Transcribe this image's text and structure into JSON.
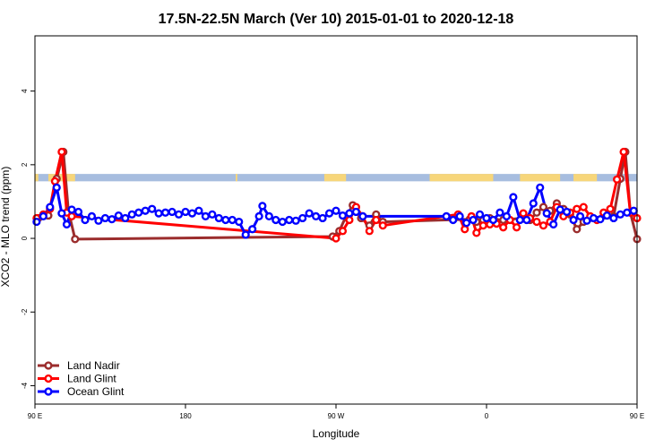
{
  "chart_data": {
    "type": "line",
    "title": "17.5N-22.5N March (Ver 10)   2015-01-01 to 2020-12-18",
    "xlabel": "Longitude",
    "ylabel": "XCO2 - MLO trend (ppm)",
    "xlim": [
      90,
      450
    ],
    "ylim": [
      -4.5,
      5.5
    ],
    "xticks": [
      {
        "value": 90,
        "label": "90 E"
      },
      {
        "value": 180,
        "label": "180"
      },
      {
        "value": 270,
        "label": "90 W"
      },
      {
        "value": 360,
        "label": "0"
      },
      {
        "value": 450,
        "label": "90 E"
      },
      {
        "value": 540,
        "label": "180"
      }
    ],
    "yticks": [
      {
        "value": -4,
        "label": "-4"
      },
      {
        "value": -2,
        "label": "-2"
      },
      {
        "value": 0,
        "label": "0"
      },
      {
        "value": 2,
        "label": "2"
      },
      {
        "value": 4,
        "label": "4"
      }
    ],
    "legend_placement": "bottom-left",
    "land_band": {
      "y_range": [
        1.55,
        1.75
      ],
      "ocean_color": "#a7bddf",
      "land_color": "#f7d67a",
      "land_spans": [
        [
          90,
          92
        ],
        [
          98,
          114
        ],
        [
          210,
          211
        ],
        [
          263,
          276
        ],
        [
          326,
          364
        ],
        [
          380,
          404
        ],
        [
          412,
          426
        ]
      ]
    },
    "series": [
      {
        "name": "Land Nadir",
        "color": "#9b2d2d",
        "points": [
          [
            92,
            0.55
          ],
          [
            98,
            0.62
          ],
          [
            103,
            1.62
          ],
          [
            107,
            2.35
          ],
          [
            110,
            0.75
          ],
          [
            114,
            -0.02
          ],
          [
            268,
            0.05
          ],
          [
            272,
            0.2
          ],
          [
            276,
            0.6
          ],
          [
            280,
            0.9
          ],
          [
            285,
            0.55
          ],
          [
            290,
            0.35
          ],
          [
            294,
            0.65
          ],
          [
            298,
            0.45
          ],
          [
            350,
            0.52
          ],
          [
            354,
            0.45
          ],
          [
            358,
            0.5
          ],
          [
            362,
            0.55
          ],
          [
            366,
            0.45
          ],
          [
            370,
            0.5
          ],
          [
            382,
            0.55
          ],
          [
            386,
            0.5
          ],
          [
            390,
            0.7
          ],
          [
            394,
            0.85
          ],
          [
            398,
            0.75
          ],
          [
            402,
            0.95
          ],
          [
            406,
            0.8
          ],
          [
            410,
            0.65
          ],
          [
            414,
            0.25
          ],
          [
            418,
            0.45
          ],
          [
            436,
            0.6
          ],
          [
            440,
            1.62
          ],
          [
            443,
            2.35
          ],
          [
            446,
            0.7
          ],
          [
            450,
            -0.02
          ]
        ]
      },
      {
        "name": "Land Glint",
        "color": "#ff0000",
        "points": [
          [
            91,
            0.55
          ],
          [
            95,
            0.65
          ],
          [
            99,
            0.8
          ],
          [
            102,
            1.55
          ],
          [
            106,
            2.35
          ],
          [
            109,
            0.7
          ],
          [
            112,
            0.6
          ],
          [
            270,
            0.0
          ],
          [
            274,
            0.2
          ],
          [
            278,
            0.5
          ],
          [
            282,
            0.85
          ],
          [
            286,
            0.6
          ],
          [
            290,
            0.2
          ],
          [
            294,
            0.5
          ],
          [
            298,
            0.35
          ],
          [
            343,
            0.65
          ],
          [
            347,
            0.25
          ],
          [
            351,
            0.6
          ],
          [
            354,
            0.15
          ],
          [
            358,
            0.35
          ],
          [
            362,
            0.38
          ],
          [
            366,
            0.4
          ],
          [
            370,
            0.3
          ],
          [
            374,
            0.5
          ],
          [
            378,
            0.3
          ],
          [
            382,
            0.68
          ],
          [
            386,
            0.55
          ],
          [
            390,
            0.45
          ],
          [
            394,
            0.35
          ],
          [
            398,
            0.45
          ],
          [
            402,
            0.85
          ],
          [
            406,
            0.6
          ],
          [
            410,
            0.7
          ],
          [
            414,
            0.8
          ],
          [
            418,
            0.85
          ],
          [
            422,
            0.6
          ],
          [
            426,
            0.5
          ],
          [
            430,
            0.7
          ],
          [
            434,
            0.8
          ],
          [
            438,
            1.6
          ],
          [
            442,
            2.35
          ],
          [
            446,
            0.7
          ],
          [
            450,
            0.55
          ]
        ]
      },
      {
        "name": "Ocean Glint",
        "color": "#0000ff",
        "points": [
          [
            91,
            0.45
          ],
          [
            95,
            0.6
          ],
          [
            99,
            0.85
          ],
          [
            103,
            1.38
          ],
          [
            106,
            0.68
          ],
          [
            109,
            0.38
          ],
          [
            112,
            0.78
          ],
          [
            116,
            0.72
          ],
          [
            120,
            0.5
          ],
          [
            124,
            0.6
          ],
          [
            128,
            0.48
          ],
          [
            132,
            0.55
          ],
          [
            136,
            0.52
          ],
          [
            140,
            0.62
          ],
          [
            144,
            0.55
          ],
          [
            148,
            0.65
          ],
          [
            152,
            0.7
          ],
          [
            156,
            0.75
          ],
          [
            160,
            0.8
          ],
          [
            164,
            0.68
          ],
          [
            168,
            0.7
          ],
          [
            172,
            0.72
          ],
          [
            176,
            0.65
          ],
          [
            180,
            0.72
          ],
          [
            184,
            0.68
          ],
          [
            188,
            0.75
          ],
          [
            192,
            0.6
          ],
          [
            196,
            0.65
          ],
          [
            200,
            0.55
          ],
          [
            204,
            0.5
          ],
          [
            208,
            0.5
          ],
          [
            212,
            0.45
          ],
          [
            216,
            0.1
          ],
          [
            220,
            0.25
          ],
          [
            224,
            0.6
          ],
          [
            226,
            0.88
          ],
          [
            230,
            0.6
          ],
          [
            234,
            0.5
          ],
          [
            238,
            0.45
          ],
          [
            242,
            0.5
          ],
          [
            246,
            0.48
          ],
          [
            250,
            0.55
          ],
          [
            254,
            0.68
          ],
          [
            258,
            0.6
          ],
          [
            262,
            0.55
          ],
          [
            266,
            0.68
          ],
          [
            270,
            0.75
          ],
          [
            274,
            0.62
          ],
          [
            278,
            0.68
          ],
          [
            282,
            0.72
          ],
          [
            286,
            0.6
          ],
          [
            336,
            0.6
          ],
          [
            340,
            0.5
          ],
          [
            344,
            0.6
          ],
          [
            348,
            0.42
          ],
          [
            352,
            0.5
          ],
          [
            356,
            0.65
          ],
          [
            360,
            0.55
          ],
          [
            364,
            0.5
          ],
          [
            368,
            0.7
          ],
          [
            372,
            0.6
          ],
          [
            376,
            1.12
          ],
          [
            380,
            0.5
          ],
          [
            384,
            0.5
          ],
          [
            388,
            0.95
          ],
          [
            392,
            1.38
          ],
          [
            396,
            0.68
          ],
          [
            400,
            0.38
          ],
          [
            404,
            0.78
          ],
          [
            408,
            0.72
          ],
          [
            412,
            0.5
          ],
          [
            416,
            0.6
          ],
          [
            420,
            0.48
          ],
          [
            424,
            0.55
          ],
          [
            428,
            0.52
          ],
          [
            432,
            0.62
          ],
          [
            436,
            0.55
          ],
          [
            440,
            0.65
          ],
          [
            444,
            0.7
          ],
          [
            448,
            0.75
          ]
        ]
      }
    ]
  }
}
